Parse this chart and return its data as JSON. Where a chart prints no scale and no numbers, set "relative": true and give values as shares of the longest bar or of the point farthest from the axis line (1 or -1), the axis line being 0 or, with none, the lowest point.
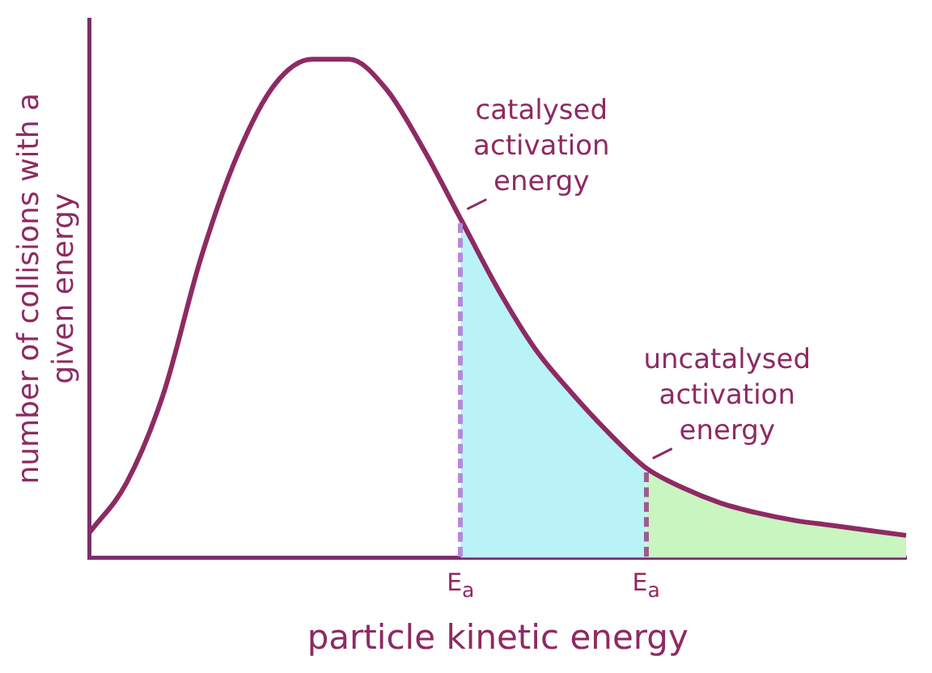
{
  "chart_data": {
    "type": "line",
    "relative": true,
    "xlabel": "particle kinetic energy",
    "ylabel": "number of collisions with a given energy",
    "categories": [
      null,
      null,
      null,
      null,
      null,
      null,
      null,
      null,
      null,
      null,
      "E$_{a}$",
      null,
      null,
      null,
      null,
      "E$_{a}$",
      null,
      null,
      null,
      null,
      null,
      null,
      null
    ],
    "series": [
      {
        "color": "#8e2a63",
        "values": [
          0.05,
          0.15,
          0.33,
          0.6,
          0.81,
          0.95,
          1.0,
          1.0,
          0.94,
          0.82,
          0.68,
          0.54,
          0.42,
          0.33,
          0.25,
          0.18,
          0.14,
          0.11,
          0.09,
          0.075,
          0.065,
          0.055,
          0.045
        ]
      },
      {
        "type": "area",
        "color": "#b9f3f7",
        "values": [
          null,
          null,
          null,
          null,
          null,
          null,
          null,
          null,
          null,
          null,
          0.68,
          0.54,
          0.42,
          0.33,
          0.25,
          0.18,
          null,
          null,
          null,
          null,
          null,
          null,
          null
        ]
      },
      {
        "type": "area",
        "color": "#c9f5c1",
        "values": [
          null,
          null,
          null,
          null,
          null,
          null,
          null,
          null,
          null,
          null,
          null,
          null,
          null,
          null,
          null,
          0.18,
          0.14,
          0.11,
          0.09,
          0.075,
          0.065,
          0.055,
          0.045
        ]
      }
    ],
    "annotations": [
      "catalysed activation energy",
      "uncatalysed activation energy"
    ],
    "grid": false,
    "legend": false,
    "tick_labels": "x",
    "marker": "none",
    "line_style": "solid"
  }
}
